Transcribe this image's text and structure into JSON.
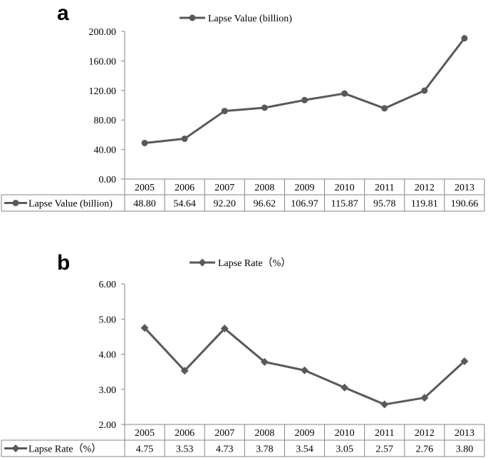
{
  "chart_data": [
    {
      "type": "line",
      "panel_label": "a",
      "series_name": "Lapse Value (billion)",
      "marker": "circle",
      "color": "#595959",
      "categories": [
        "2005",
        "2006",
        "2007",
        "2008",
        "2009",
        "2010",
        "2011",
        "2012",
        "2013"
      ],
      "values": [
        48.8,
        54.64,
        92.2,
        96.62,
        106.97,
        115.87,
        95.78,
        119.81,
        190.66
      ],
      "value_labels": [
        "48.80",
        "54.64",
        "92.20",
        "96.62",
        "106.97",
        "115.87",
        "95.78",
        "119.81",
        "190.66"
      ],
      "ylim": [
        0,
        200
      ],
      "yticks": [
        0,
        40,
        80,
        120,
        160,
        200
      ],
      "ytick_labels": [
        "0.00",
        "40.00",
        "80.00",
        "120.00",
        "160.00",
        "200.00"
      ],
      "legend_position": "top",
      "data_table": true
    },
    {
      "type": "line",
      "panel_label": "b",
      "series_name": "Lapse Rate（%）",
      "marker": "diamond",
      "color": "#595959",
      "categories": [
        "2005",
        "2006",
        "2007",
        "2008",
        "2009",
        "2010",
        "2011",
        "2012",
        "2013"
      ],
      "values": [
        4.75,
        3.53,
        4.73,
        3.78,
        3.54,
        3.05,
        2.57,
        2.76,
        3.8
      ],
      "value_labels": [
        "4.75",
        "3.53",
        "4.73",
        "3.78",
        "3.54",
        "3.05",
        "2.57",
        "2.76",
        "3.80"
      ],
      "ylim": [
        2,
        6
      ],
      "yticks": [
        2,
        3,
        4,
        5,
        6
      ],
      "ytick_labels": [
        "2.00",
        "3.00",
        "4.00",
        "5.00",
        "6.00"
      ],
      "legend_position": "top",
      "data_table": true
    }
  ]
}
